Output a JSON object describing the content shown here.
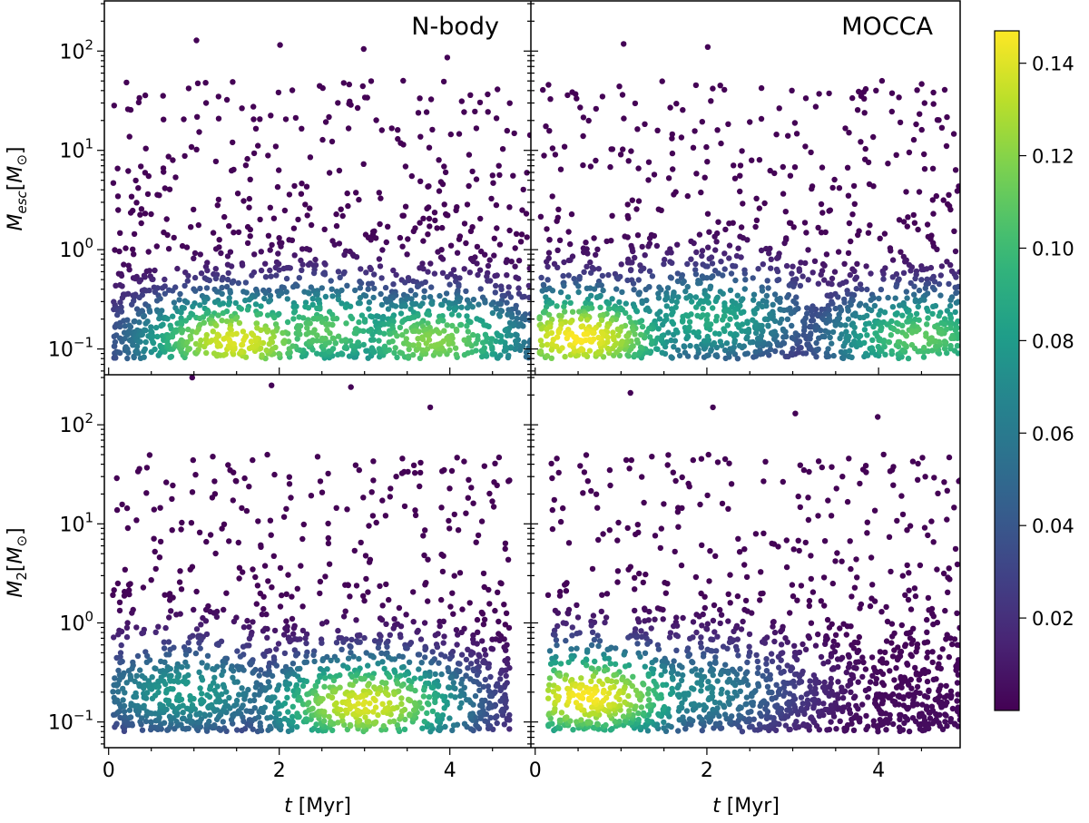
{
  "figure": {
    "panel_titles": [
      "N-body",
      "MOCCA"
    ],
    "x_axis_label": "t [Myr]",
    "y_axis_label_top": "M_esc [M_⊙]",
    "y_axis_label_bottom": "M_2 [M_⊙]",
    "colormap": "viridis",
    "colormap_stops": [
      "#440154",
      "#482878",
      "#3e4989",
      "#31688e",
      "#26828e",
      "#1f9e89",
      "#35b779",
      "#6ece58",
      "#b5de2b",
      "#fde725"
    ]
  },
  "chart_data": [
    {
      "type": "scatter",
      "title": "N-body",
      "xlabel": "",
      "ylabel": "M_esc [M_⊙]",
      "x_ticks": [],
      "xlim": [
        -0.05,
        4.95
      ],
      "ylim": [
        0.055,
        320
      ],
      "yscale": "log",
      "y_ticks": [
        {
          "value": 0.1,
          "label": "10^-1"
        },
        {
          "value": 1,
          "label": "10^0"
        },
        {
          "value": 10,
          "label": "10^1"
        },
        {
          "value": 100,
          "label": "10^2"
        }
      ],
      "x_range": [
        0.05,
        4.95
      ],
      "y_min_floor": 0.08,
      "density_peaks": [
        {
          "t": 1.5,
          "mass": 0.12,
          "density": 0.14
        },
        {
          "t": 3.8,
          "mass": 0.12,
          "density": 0.12
        },
        {
          "t": 2.5,
          "mass": 0.15,
          "density": 0.11
        }
      ],
      "max_mass_values": [
        128,
        115,
        105,
        86
      ]
    },
    {
      "type": "scatter",
      "title": "MOCCA",
      "xlabel": "",
      "ylabel": "",
      "x_ticks": [],
      "xlim": [
        -0.05,
        4.95
      ],
      "ylim": [
        0.055,
        320
      ],
      "yscale": "log",
      "y_ticks": [],
      "x_range": [
        0.05,
        4.95
      ],
      "y_min_floor": 0.08,
      "density_peaks": [
        {
          "t": 0.5,
          "mass": 0.13,
          "density": 0.147
        },
        {
          "t": 4.5,
          "mass": 0.13,
          "density": 0.11
        },
        {
          "t": 2.0,
          "mass": 0.2,
          "density": 0.09
        }
      ],
      "max_mass_values": [
        118,
        110,
        40,
        40
      ]
    },
    {
      "type": "scatter",
      "title": "",
      "xlabel": "t [Myr]",
      "ylabel": "M_2 [M_⊙]",
      "x_ticks": [
        0,
        2,
        4
      ],
      "xlim": [
        -0.05,
        4.95
      ],
      "ylim": [
        0.055,
        320
      ],
      "yscale": "log",
      "y_ticks": [
        {
          "value": 0.1,
          "label": "10^-1"
        },
        {
          "value": 1,
          "label": "10^0"
        },
        {
          "value": 10,
          "label": "10^1"
        },
        {
          "value": 100,
          "label": "10^2"
        }
      ],
      "x_range": [
        0.05,
        4.7
      ],
      "y_min_floor": 0.08,
      "density_peaks": [
        {
          "t": 3.0,
          "mass": 0.15,
          "density": 0.14
        },
        {
          "t": 0.9,
          "mass": 0.2,
          "density": 0.08
        }
      ],
      "max_mass_values": [
        300,
        250,
        240,
        150
      ]
    },
    {
      "type": "scatter",
      "title": "",
      "xlabel": "t [Myr]",
      "ylabel": "",
      "x_ticks": [
        0,
        2,
        4
      ],
      "xlim": [
        -0.05,
        4.95
      ],
      "ylim": [
        0.055,
        320
      ],
      "yscale": "log",
      "y_ticks": [],
      "x_range": [
        0.15,
        4.95
      ],
      "y_min_floor": 0.08,
      "density_peaks": [
        {
          "t": 0.6,
          "mass": 0.18,
          "density": 0.147
        },
        {
          "t": 1.8,
          "mass": 0.2,
          "density": 0.07
        }
      ],
      "max_mass_values": [
        210,
        150,
        130,
        120
      ]
    },
    {
      "type": "heatmap",
      "title": "colorbar",
      "colorbar_range": [
        0.0,
        0.147
      ],
      "colorbar_ticks": [
        0.02,
        0.04,
        0.06,
        0.08,
        0.1,
        0.12,
        0.14
      ],
      "colorbar_tick_labels": [
        "0.02",
        "0.04",
        "0.06",
        "0.08",
        "0.10",
        "0.12",
        "0.14"
      ]
    }
  ]
}
